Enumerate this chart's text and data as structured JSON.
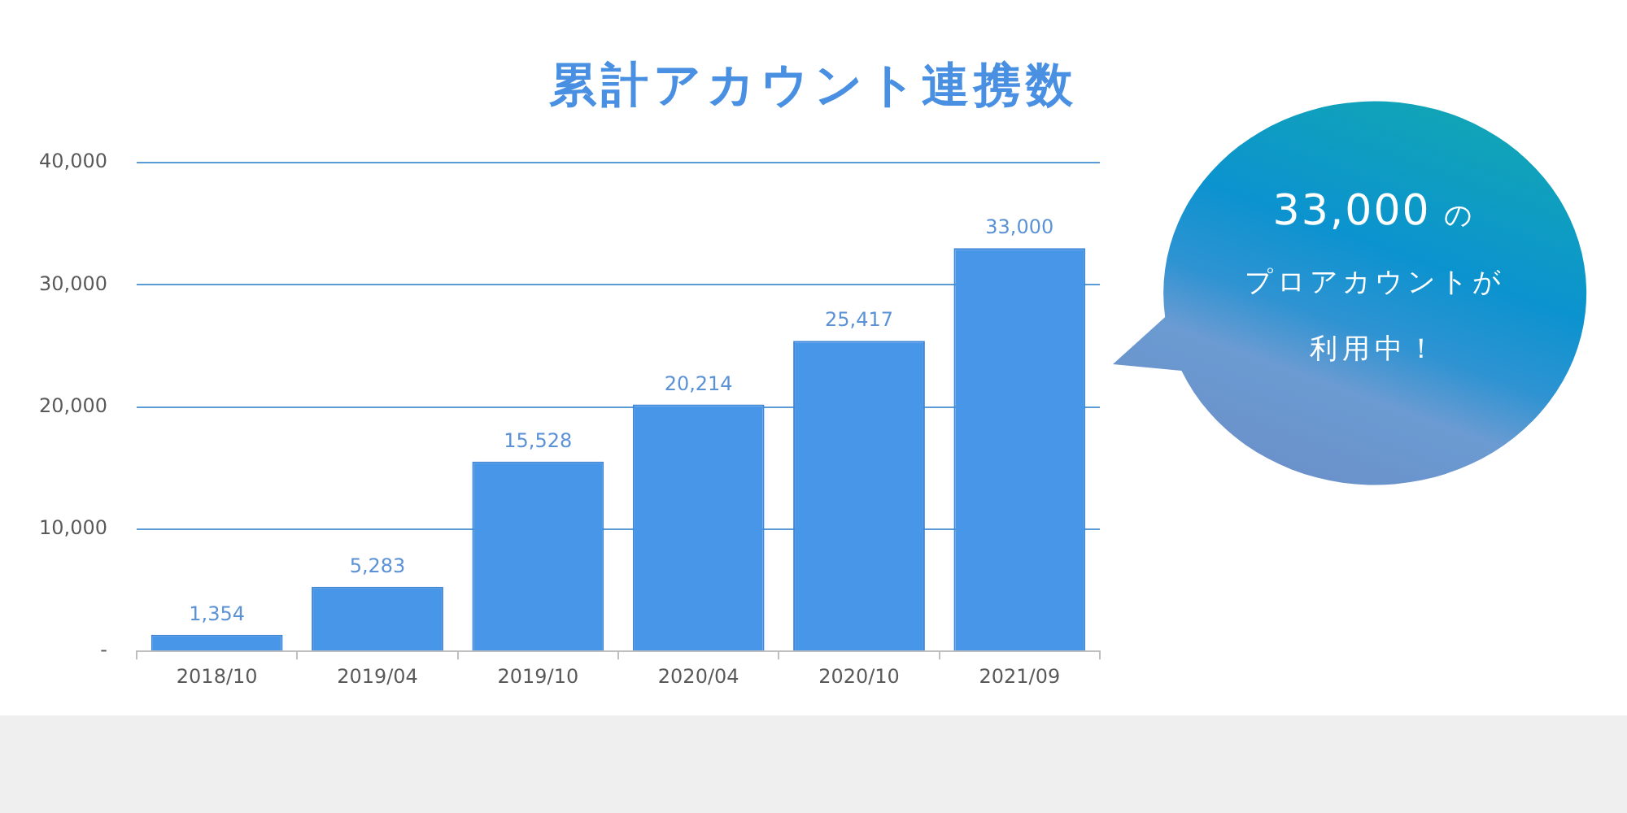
{
  "chart_data": {
    "type": "bar",
    "title": "累計アカウント連携数",
    "categories": [
      "2018/10",
      "2019/04",
      "2019/10",
      "2020/04",
      "2020/10",
      "2021/09"
    ],
    "values": [
      1354,
      5283,
      15528,
      20214,
      25417,
      33000
    ],
    "color": "#4896e8",
    "value_labels": [
      "1,354",
      "5,283",
      "15,528",
      "20,214",
      "25,417",
      "33,000"
    ],
    "ylim": [
      0,
      40000
    ],
    "yticks": [
      {
        "value": 0,
        "label": "-"
      },
      {
        "value": 10000,
        "label": "10,000"
      },
      {
        "value": 20000,
        "label": "20,000"
      },
      {
        "value": 30000,
        "label": "30,000"
      },
      {
        "value": 40000,
        "label": "40,000"
      }
    ],
    "grid": "y",
    "legend": false,
    "annotations": [
      "33,000 の",
      "プロアカウントが",
      "利用中！"
    ]
  }
}
